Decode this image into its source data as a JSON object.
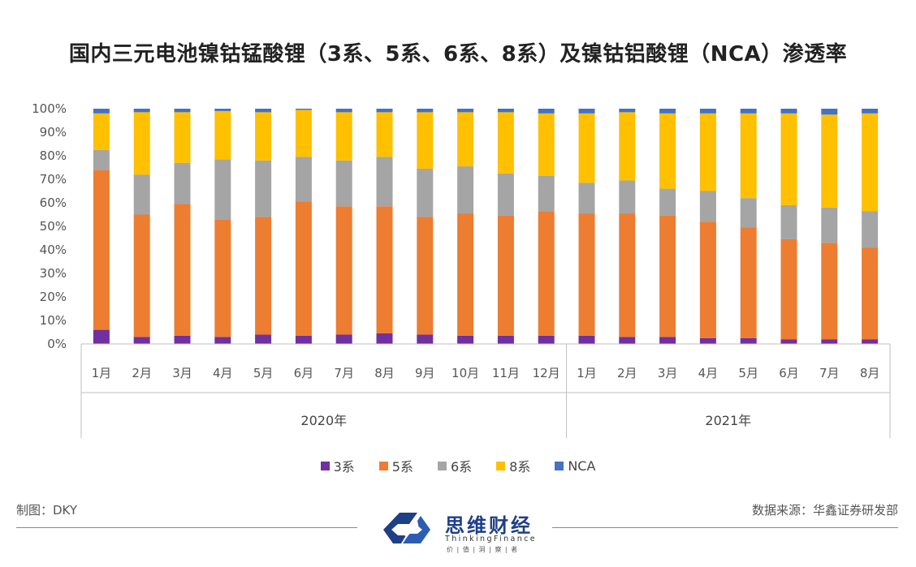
{
  "title": "国内三元电池镍钴锰酸锂（3系、5系、6系、8系）及镍钴铝酸锂（NCA）渗透率",
  "chart_data": {
    "type": "bar",
    "stacked": true,
    "ylim": [
      0,
      100
    ],
    "yticks": [
      "0%",
      "10%",
      "20%",
      "30%",
      "40%",
      "50%",
      "60%",
      "70%",
      "80%",
      "90%",
      "100%"
    ],
    "categories": [
      "1月",
      "2月",
      "3月",
      "4月",
      "5月",
      "6月",
      "7月",
      "8月",
      "9月",
      "10月",
      "11月",
      "12月",
      "1月",
      "2月",
      "3月",
      "4月",
      "5月",
      "6月",
      "7月",
      "8月"
    ],
    "groups": [
      {
        "label": "2020年",
        "count": 12
      },
      {
        "label": "2021年",
        "count": 8
      }
    ],
    "legend_position": "bottom",
    "series": [
      {
        "name": "3系",
        "color": "#7030a0",
        "values": [
          6,
          3,
          3.5,
          3,
          4,
          3.5,
          4,
          4.5,
          4,
          3.5,
          3.5,
          3.5,
          3.5,
          3,
          3,
          2.5,
          2.5,
          2,
          2,
          2
        ]
      },
      {
        "name": "5系",
        "color": "#ed7d31",
        "values": [
          68,
          52,
          56,
          50,
          50,
          57,
          54.5,
          54,
          50,
          52,
          51,
          53,
          52,
          52.5,
          51.5,
          49.5,
          47,
          42.5,
          41,
          39
        ]
      },
      {
        "name": "6系",
        "color": "#a5a5a5",
        "values": [
          8.5,
          17,
          17.5,
          25.5,
          24,
          19,
          19.5,
          21,
          20.5,
          20,
          18,
          15,
          13,
          14,
          11.5,
          13,
          12.5,
          14.5,
          15,
          15.5
        ]
      },
      {
        "name": "8系",
        "color": "#ffc000",
        "values": [
          15.5,
          26.5,
          21.5,
          20.5,
          20.5,
          20,
          20.5,
          19,
          24,
          23,
          26,
          26.5,
          29.5,
          29,
          32,
          33,
          36,
          39,
          39.5,
          41.5
        ]
      },
      {
        "name": "NCA",
        "color": "#4472c4",
        "values": [
          2,
          1.5,
          1.5,
          1,
          1.5,
          0.5,
          1.5,
          1.5,
          1.5,
          1.5,
          1.5,
          2,
          2,
          1.5,
          2,
          2,
          2,
          2,
          2.5,
          2
        ]
      }
    ]
  },
  "footer": {
    "made_by": "制图：DKY",
    "source": "数据来源：华鑫证券研发部"
  },
  "logo": {
    "name_cn": "思维财经",
    "name_en": "ThinkingFinance",
    "tagline": "价 | 值 | 洞 | 察 | 者"
  }
}
